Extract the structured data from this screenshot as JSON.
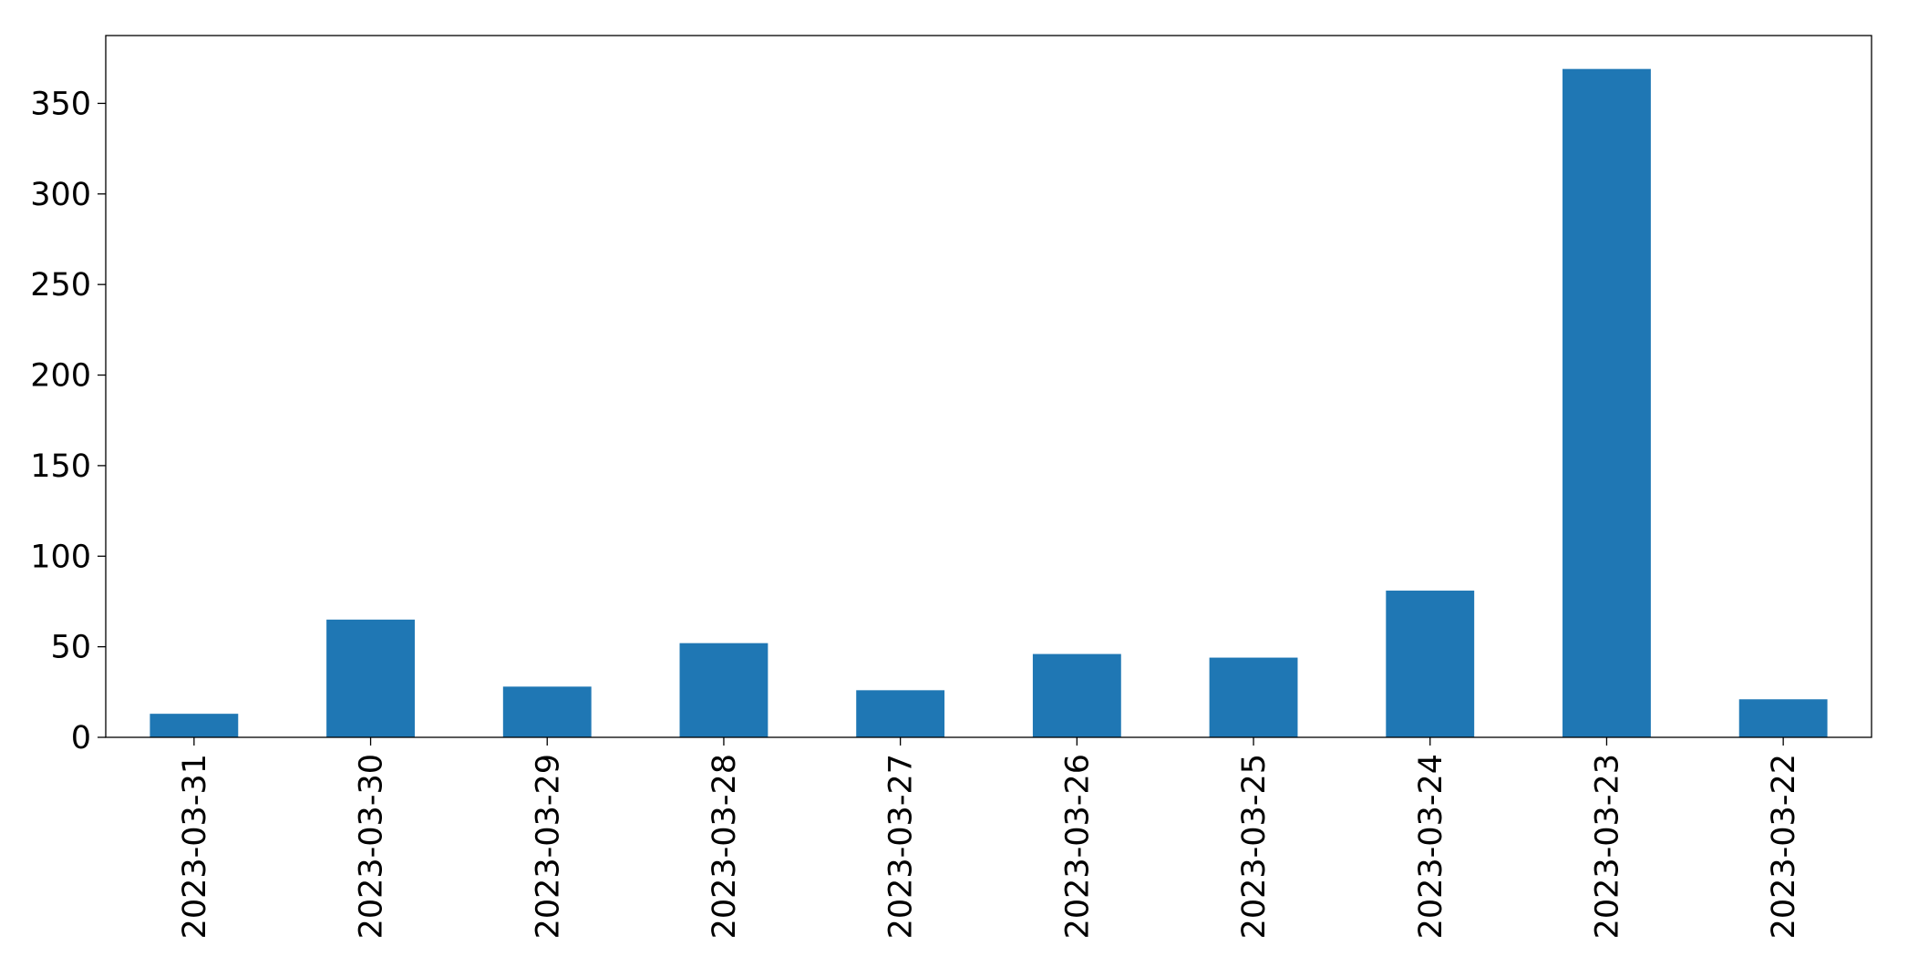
{
  "chart_data": {
    "type": "bar",
    "categories": [
      "2023-03-31",
      "2023-03-30",
      "2023-03-29",
      "2023-03-28",
      "2023-03-27",
      "2023-03-26",
      "2023-03-25",
      "2023-03-24",
      "2023-03-23",
      "2023-03-22"
    ],
    "values": [
      13,
      65,
      28,
      52,
      26,
      46,
      44,
      81,
      369,
      21
    ],
    "color": "#1f77b4",
    "ylim": [
      0,
      387.45
    ],
    "yticks": [
      0,
      50,
      100,
      150,
      200,
      250,
      300,
      350
    ],
    "grid": false
  }
}
